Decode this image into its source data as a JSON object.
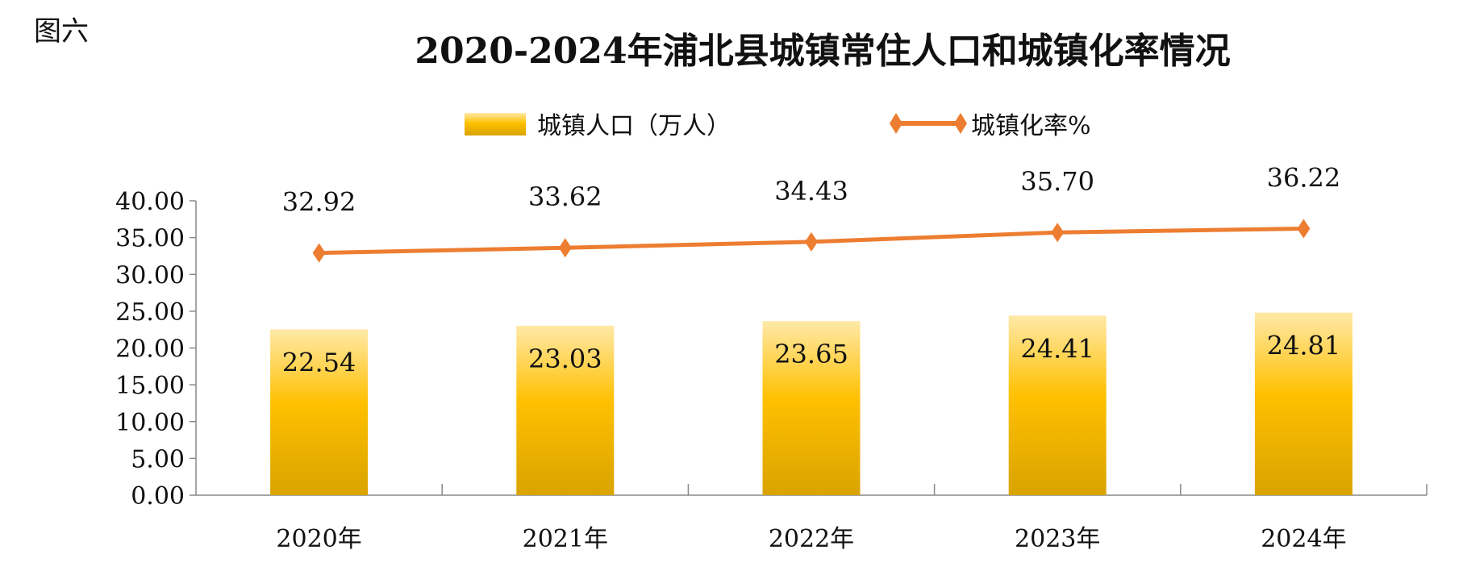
{
  "figure_label": "图六",
  "chart_data": {
    "type": "bar",
    "title": "2020-2024年浦北县城镇常住人口和城镇化率情况",
    "categories": [
      "2020年",
      "2021年",
      "2022年",
      "2023年",
      "2024年"
    ],
    "series": [
      {
        "name": "城镇人口（万人）",
        "type": "bar",
        "values": [
          22.54,
          23.03,
          23.65,
          24.41,
          24.81
        ],
        "labels": [
          "22.54",
          "23.03",
          "23.65",
          "24.41",
          "24.81"
        ],
        "color": "#FFC000"
      },
      {
        "name": "城镇化率%",
        "type": "line",
        "values": [
          32.92,
          33.62,
          34.43,
          35.7,
          36.22
        ],
        "labels": [
          "32.92",
          "33.62",
          "34.43",
          "35.70",
          "36.22"
        ],
        "color": "#ED7D31"
      }
    ],
    "yticks": [
      "0.00",
      "5.00",
      "10.00",
      "15.00",
      "20.00",
      "25.00",
      "30.00",
      "35.00",
      "40.00"
    ],
    "ylim": [
      0,
      40
    ],
    "xlabel": "",
    "ylabel": "",
    "legend_position": "top",
    "grid": false
  }
}
